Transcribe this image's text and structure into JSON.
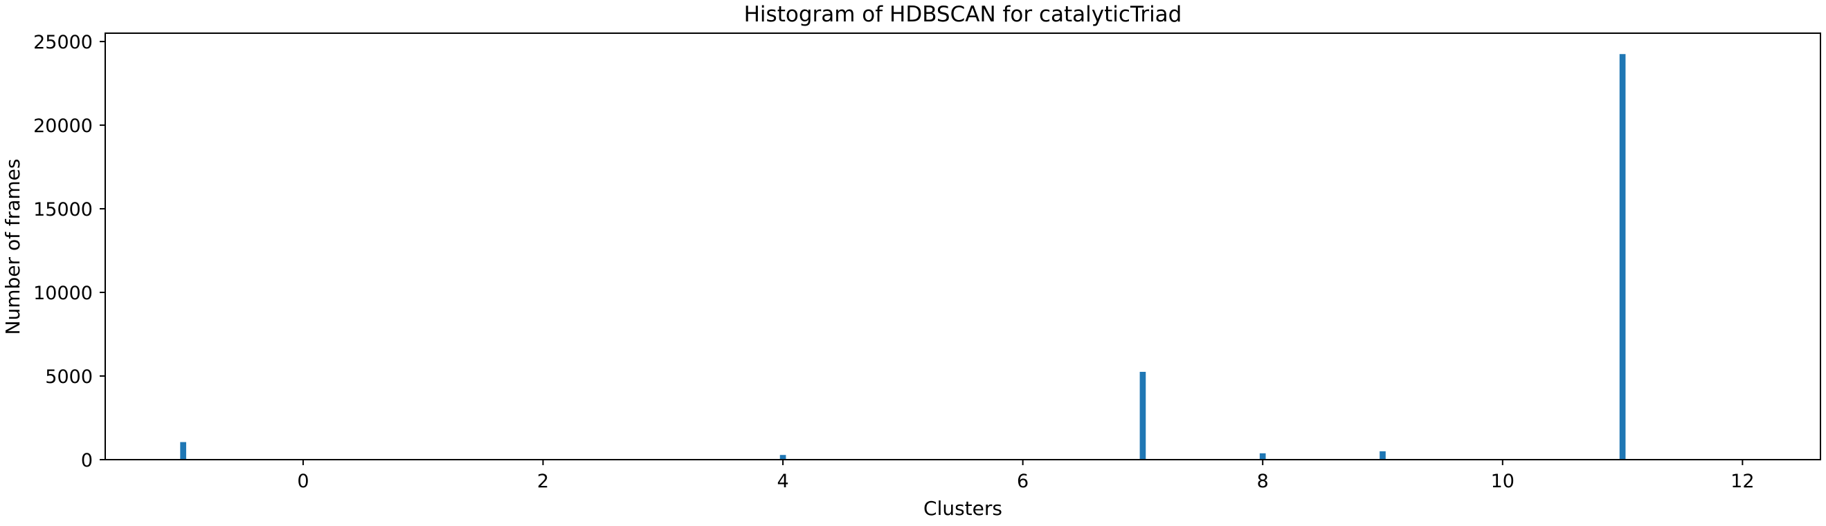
{
  "chart_data": {
    "type": "bar",
    "title": "Histogram of HDBSCAN for catalyticTriad",
    "xlabel": "Clusters",
    "ylabel": "Number of frames",
    "xlim": [
      -1.65,
      12.65
    ],
    "ylim": [
      0,
      25500
    ],
    "xticks": [
      0,
      2,
      4,
      6,
      8,
      10,
      12
    ],
    "yticks": [
      0,
      5000,
      10000,
      15000,
      20000,
      25000
    ],
    "bar_width": 0.05,
    "grid": false,
    "legend": false,
    "bar_color": "#1f77b4",
    "categories": [
      -1,
      4,
      7,
      8,
      9,
      11
    ],
    "values": [
      1050,
      280,
      5250,
      380,
      500,
      24250
    ]
  }
}
